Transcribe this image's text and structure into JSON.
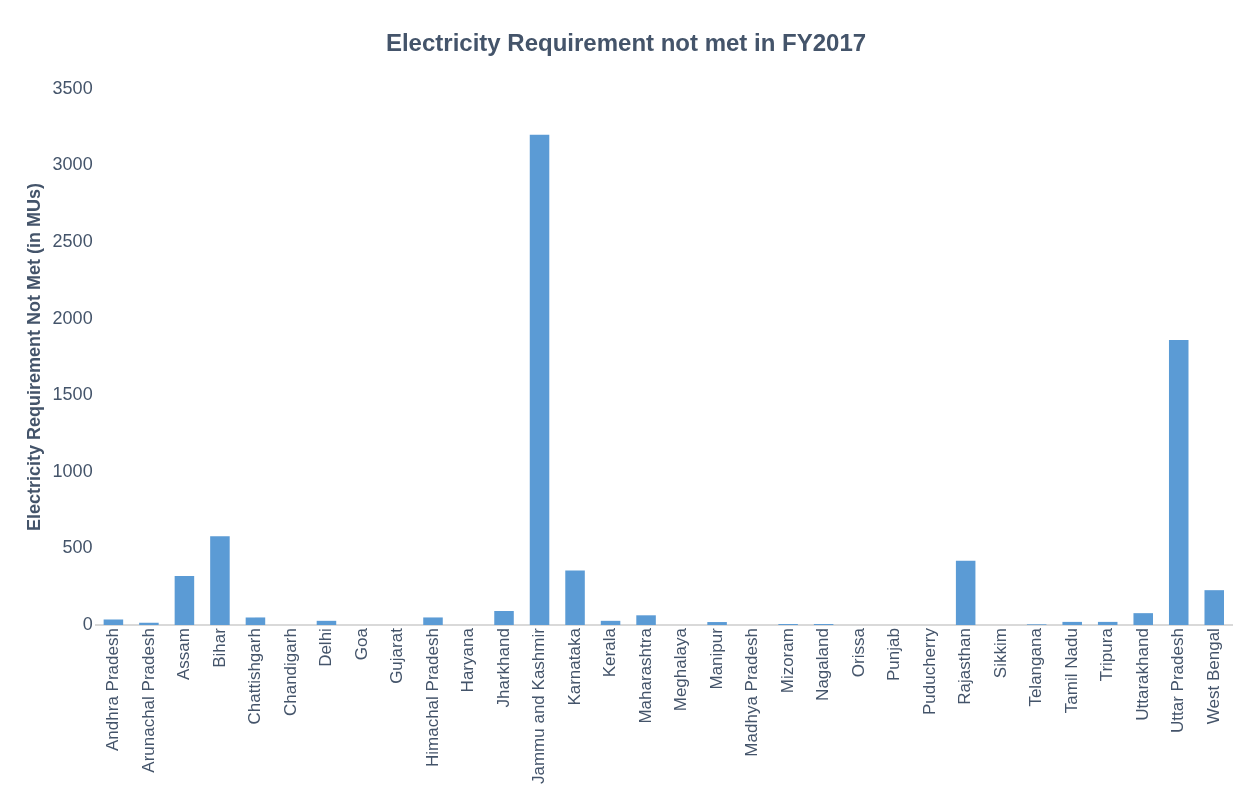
{
  "chart_data": {
    "type": "bar",
    "title": "Electricity Requirement not met in FY2017",
    "ylabel": "Electricity Requirement Not Met (in MUs)",
    "categories": [
      "Andhra Pradesh",
      "Arunachal Pradesh",
      "Assam",
      "Bihar",
      "Chattishgarh",
      "Chandigarh",
      "Delhi",
      "Goa",
      "Gujarat",
      "Himachal Pradesh",
      "Haryana",
      "Jharkhand",
      "Jammu and Kashmir",
      "Karnataka",
      "Kerala",
      "Maharashtra",
      "Meghalaya",
      "Manipur",
      "Madhya Pradesh",
      "Mizoram",
      "Nagaland",
      "Orissa",
      "Punjab",
      "Puducherry",
      "Rajasthan",
      "Sikkim",
      "Telangana",
      "Tamil Nadu",
      "Tripura",
      "Uttarakhand",
      "Uttar Pradesh",
      "West Bengal"
    ],
    "values": [
      36,
      15,
      320,
      580,
      50,
      0,
      28,
      0,
      0,
      50,
      0,
      92,
      3200,
      357,
      28,
      64,
      0,
      20,
      0,
      7,
      7,
      0,
      0,
      0,
      420,
      0,
      5,
      21,
      21,
      78,
      1860,
      228
    ],
    "color": "#5b9bd5",
    "ylim": [
      0,
      3500
    ],
    "yticks": [
      0,
      500,
      1000,
      1500,
      2000,
      2500,
      3000,
      3500
    ],
    "grid": false,
    "legend": false
  }
}
